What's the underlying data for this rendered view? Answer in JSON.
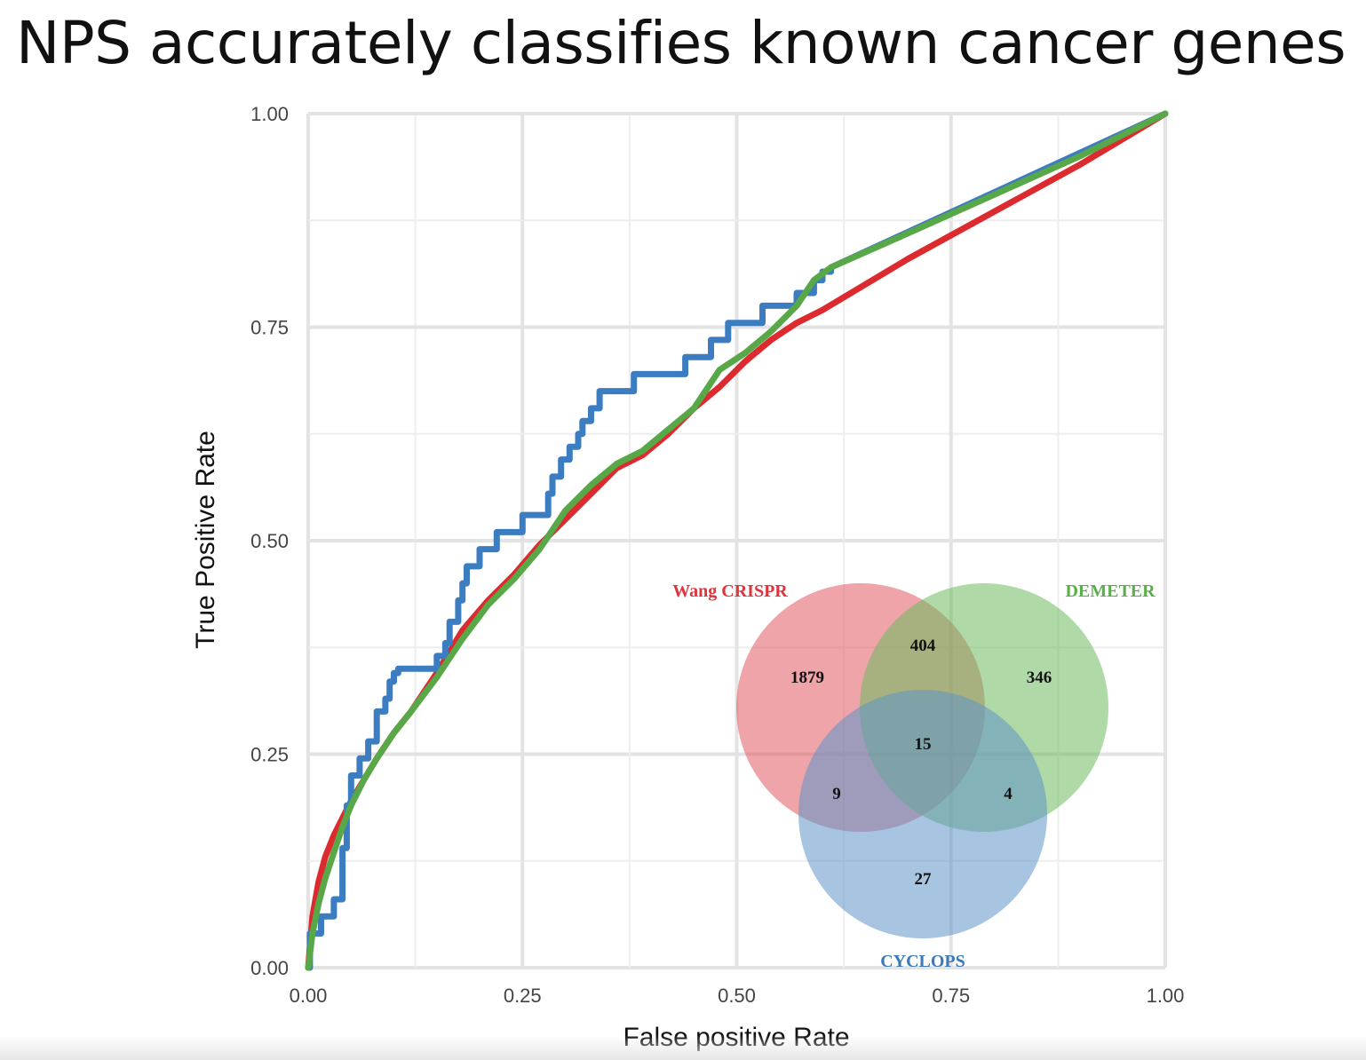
{
  "title": "NPS accurately classifies known cancer genes",
  "chart_data": {
    "type": "line",
    "xlabel": "False positive Rate",
    "ylabel": "True Positive Rate",
    "xlim": [
      0,
      1
    ],
    "ylim": [
      0,
      1
    ],
    "x_ticks": [
      "0.00",
      "0.25",
      "0.50",
      "0.75",
      "1.00"
    ],
    "y_ticks": [
      "0.00",
      "0.25",
      "0.50",
      "0.75",
      "1.00"
    ],
    "grid": true,
    "legend": "none",
    "series": [
      {
        "color": "#dd2a2f",
        "x": [
          0,
          0.005,
          0.012,
          0.02,
          0.03,
          0.04,
          0.05,
          0.065,
          0.08,
          0.1,
          0.12,
          0.15,
          0.18,
          0.21,
          0.24,
          0.27,
          0.3,
          0.33,
          0.36,
          0.39,
          0.42,
          0.45,
          0.48,
          0.51,
          0.54,
          0.57,
          0.6,
          0.7,
          0.8,
          0.9,
          1.0
        ],
        "y": [
          0,
          0.06,
          0.1,
          0.13,
          0.155,
          0.175,
          0.195,
          0.22,
          0.245,
          0.275,
          0.3,
          0.345,
          0.395,
          0.43,
          0.46,
          0.495,
          0.525,
          0.555,
          0.585,
          0.6,
          0.625,
          0.655,
          0.68,
          0.71,
          0.735,
          0.755,
          0.77,
          0.83,
          0.885,
          0.94,
          1.0
        ]
      },
      {
        "color": "#3b7dc0",
        "x": [
          0,
          0.002,
          0.002,
          0.015,
          0.015,
          0.03,
          0.03,
          0.04,
          0.04,
          0.045,
          0.045,
          0.05,
          0.05,
          0.06,
          0.06,
          0.07,
          0.07,
          0.08,
          0.08,
          0.09,
          0.09,
          0.095,
          0.095,
          0.1,
          0.1,
          0.105,
          0.105,
          0.15,
          0.15,
          0.16,
          0.16,
          0.165,
          0.165,
          0.175,
          0.175,
          0.18,
          0.18,
          0.185,
          0.185,
          0.2,
          0.2,
          0.22,
          0.22,
          0.25,
          0.25,
          0.28,
          0.28,
          0.285,
          0.285,
          0.295,
          0.295,
          0.305,
          0.305,
          0.315,
          0.315,
          0.32,
          0.32,
          0.33,
          0.33,
          0.34,
          0.34,
          0.38,
          0.38,
          0.44,
          0.44,
          0.47,
          0.47,
          0.49,
          0.49,
          0.53,
          0.53,
          0.57,
          0.57,
          0.59,
          0.59,
          0.6,
          0.6,
          0.61,
          0.61,
          1.0
        ],
        "y": [
          0,
          0,
          0.04,
          0.04,
          0.06,
          0.06,
          0.08,
          0.08,
          0.14,
          0.14,
          0.19,
          0.19,
          0.225,
          0.225,
          0.245,
          0.245,
          0.265,
          0.265,
          0.3,
          0.3,
          0.315,
          0.315,
          0.335,
          0.335,
          0.345,
          0.345,
          0.35,
          0.35,
          0.365,
          0.365,
          0.38,
          0.38,
          0.405,
          0.405,
          0.43,
          0.43,
          0.45,
          0.45,
          0.47,
          0.47,
          0.49,
          0.49,
          0.51,
          0.51,
          0.53,
          0.53,
          0.555,
          0.555,
          0.575,
          0.575,
          0.595,
          0.595,
          0.61,
          0.61,
          0.625,
          0.625,
          0.64,
          0.64,
          0.655,
          0.655,
          0.675,
          0.675,
          0.695,
          0.695,
          0.715,
          0.715,
          0.735,
          0.735,
          0.755,
          0.755,
          0.775,
          0.775,
          0.79,
          0.79,
          0.805,
          0.805,
          0.815,
          0.815,
          0.82,
          1.0
        ]
      },
      {
        "color": "#58a848",
        "x": [
          0,
          0.005,
          0.012,
          0.02,
          0.03,
          0.04,
          0.05,
          0.065,
          0.08,
          0.1,
          0.12,
          0.15,
          0.18,
          0.21,
          0.24,
          0.27,
          0.3,
          0.33,
          0.36,
          0.39,
          0.42,
          0.45,
          0.48,
          0.51,
          0.54,
          0.57,
          0.59,
          0.61,
          0.7,
          0.8,
          0.9,
          1.0
        ],
        "y": [
          0,
          0.04,
          0.075,
          0.105,
          0.135,
          0.165,
          0.19,
          0.22,
          0.245,
          0.275,
          0.3,
          0.34,
          0.385,
          0.425,
          0.455,
          0.49,
          0.535,
          0.565,
          0.59,
          0.605,
          0.63,
          0.655,
          0.7,
          0.72,
          0.745,
          0.775,
          0.805,
          0.82,
          0.86,
          0.905,
          0.95,
          1.0
        ]
      }
    ],
    "venn": {
      "sets": [
        {
          "label": "Wang CRISPR",
          "color": "#e05a62",
          "text_color": "#e0343c"
        },
        {
          "label": "DEMETER",
          "color": "#6dbb5e",
          "text_color": "#5aae4a"
        },
        {
          "label": "CYCLOPS",
          "color": "#5f93c8",
          "text_color": "#3d79b8"
        }
      ],
      "counts": {
        "wang_only": "1879",
        "wang_demeter": "404",
        "demeter_only": "346",
        "all_three": "15",
        "wang_cyclops": "9",
        "demeter_cyclops": "4",
        "cyclops_only": "27"
      }
    }
  }
}
